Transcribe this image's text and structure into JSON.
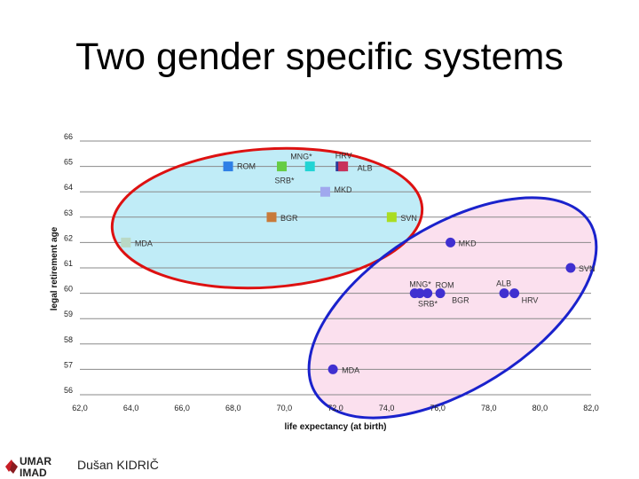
{
  "slide": {
    "title": "Two gender specific systems",
    "author": "Dušan KIDRIČ",
    "logo_text_top": "UMAR",
    "logo_text_bottom": "IMAD"
  },
  "chart_data": {
    "type": "scatter",
    "title": "",
    "xlabel": "life expectancy (at birth)",
    "ylabel": "legal retirement age",
    "xlim": [
      62,
      82
    ],
    "ylim": [
      56,
      66
    ],
    "x_ticks": [
      "62,0",
      "64,0",
      "66,0",
      "68,0",
      "70,0",
      "72,0",
      "74,0",
      "76,0",
      "78,0",
      "80,0",
      "82,0"
    ],
    "y_ticks": [
      "56",
      "57",
      "58",
      "59",
      "60",
      "61",
      "62",
      "63",
      "64",
      "65",
      "66"
    ],
    "grid": "horizontal",
    "series": [
      {
        "marker": "square",
        "points": [
          {
            "label": "ROM",
            "x": 67.8,
            "y": 65.0,
            "color": "#2e7fe6"
          },
          {
            "label": "SRB*",
            "x": 69.9,
            "y": 65.0,
            "color": "#66cc44"
          },
          {
            "label": "MNG*",
            "x": 71.0,
            "y": 65.0,
            "color": "#22d4d4"
          },
          {
            "label": "HRV",
            "x": 72.2,
            "y": 65.0,
            "color": "#2a3a9a"
          },
          {
            "label": "ALB",
            "x": 72.3,
            "y": 65.0,
            "color": "#c8325a"
          },
          {
            "label": "MKD",
            "x": 71.6,
            "y": 64.0,
            "color": "#a0a8ee"
          },
          {
            "label": "BGR",
            "x": 69.5,
            "y": 63.0,
            "color": "#c87a3a"
          },
          {
            "label": "SVN",
            "x": 74.2,
            "y": 63.0,
            "color": "#aadd22"
          },
          {
            "label": "MDA",
            "x": 63.8,
            "y": 62.0,
            "color": "#b9d9c6"
          }
        ]
      },
      {
        "marker": "circle",
        "points": [
          {
            "label": "MKD",
            "x": 76.5,
            "y": 62.0,
            "color": "#4030d0"
          },
          {
            "label": "SVN",
            "x": 81.2,
            "y": 61.0,
            "color": "#4030d0"
          },
          {
            "label": "MNG*",
            "x": 75.1,
            "y": 60.0,
            "color": "#4030d0"
          },
          {
            "label": "ROM",
            "x": 75.6,
            "y": 60.0,
            "color": "#4030d0"
          },
          {
            "label": "SRB*",
            "x": 75.3,
            "y": 60.0,
            "color": "#4030d0"
          },
          {
            "label": "BGR",
            "x": 76.1,
            "y": 60.0,
            "color": "#4030d0"
          },
          {
            "label": "ALB",
            "x": 78.6,
            "y": 60.0,
            "color": "#4030d0"
          },
          {
            "label": "HRV",
            "x": 79.0,
            "y": 60.0,
            "color": "#4030d0"
          },
          {
            "label": "MDA",
            "x": 71.9,
            "y": 57.0,
            "color": "#4030d0"
          }
        ]
      }
    ],
    "groups": [
      {
        "shape": "ellipse",
        "outline": "#dd1111",
        "fill": "#c0ecf7"
      },
      {
        "shape": "ellipse",
        "outline": "#1a22cc",
        "fill": "#fbe0ee"
      }
    ]
  }
}
